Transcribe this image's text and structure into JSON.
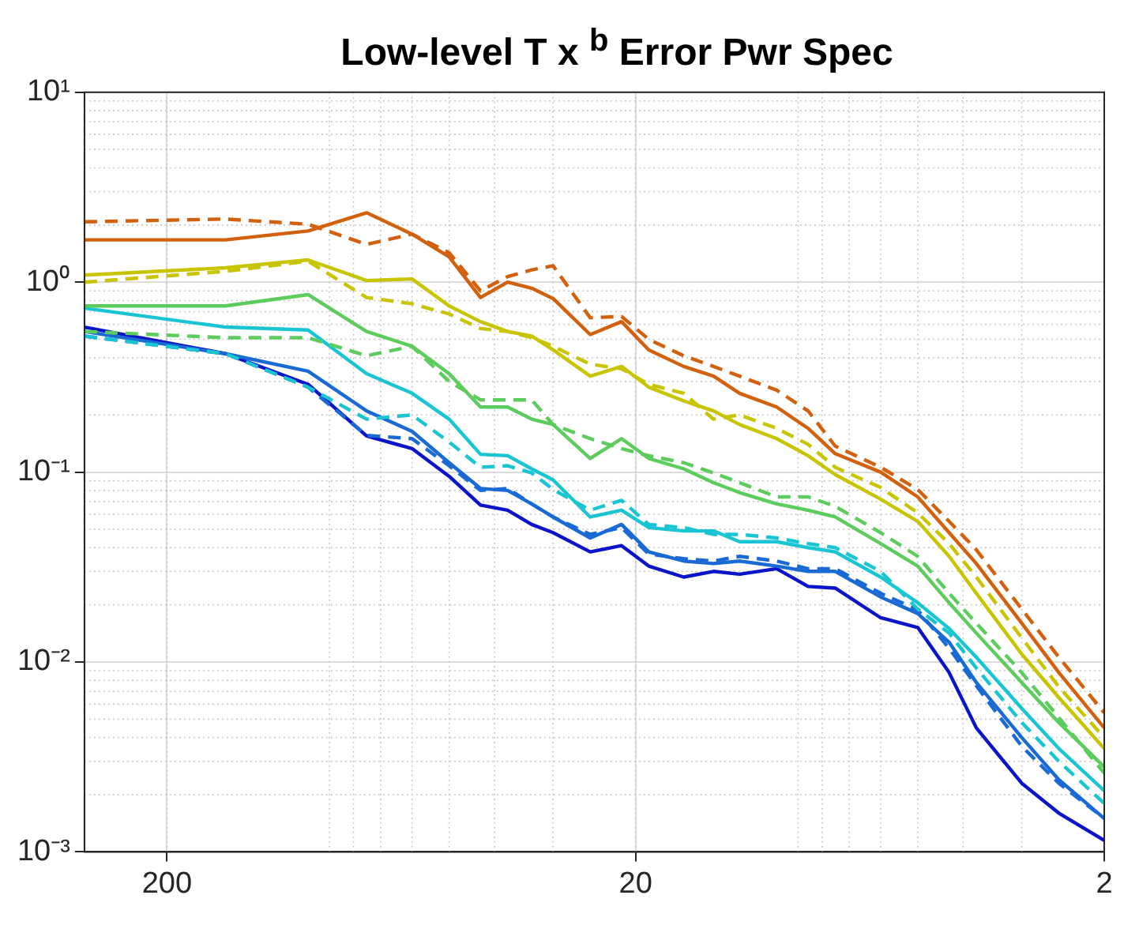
{
  "chart_data": {
    "type": "line",
    "title": "Low-level T x $^{b}$ Error Pwr Spec",
    "x": [
      300,
      150,
      100,
      75,
      60,
      50,
      42.86,
      37.5,
      33.33,
      30,
      25,
      21.43,
      18.75,
      15.79,
      13.64,
      12,
      10,
      8.571,
      7.5,
      6,
      5,
      4.286,
      3.75,
      3,
      2.5,
      2
    ],
    "xlim": [
      300,
      2
    ],
    "xticks": [
      200,
      20,
      2
    ],
    "ylim": [
      0.001,
      10
    ],
    "yticks": [
      {
        "value": 0.001,
        "label": "10⁻³"
      },
      {
        "value": 0.01,
        "label": "10⁻²"
      },
      {
        "value": 0.1,
        "label": "10⁻¹"
      },
      {
        "value": 1,
        "label": "10⁰"
      },
      {
        "value": 10,
        "label": "10¹"
      }
    ],
    "log": "xy",
    "grid": true,
    "legend": false,
    "marker": "none",
    "line_style": "solid",
    "series": [
      {
        "color": "#d3600d",
        "values": [
          1.67,
          1.67,
          1.86,
          2.32,
          1.79,
          1.36,
          0.83,
          1.0,
          0.93,
          0.82,
          0.53,
          0.62,
          0.44,
          0.36,
          0.32,
          0.26,
          0.22,
          0.17,
          0.125,
          0.1,
          0.074,
          0.048,
          0.033,
          0.016,
          0.0088,
          0.0045
        ]
      },
      {
        "color": "#d3600d",
        "line_style": "dashed",
        "values": [
          2.08,
          2.15,
          2.02,
          1.58,
          1.79,
          1.43,
          0.9,
          1.07,
          1.16,
          1.22,
          0.65,
          0.66,
          0.5,
          0.41,
          0.36,
          0.32,
          0.27,
          0.21,
          0.137,
          0.106,
          0.081,
          0.055,
          0.039,
          0.019,
          0.0106,
          0.0054
        ]
      },
      {
        "color": "#c8c400",
        "values": [
          1.09,
          1.19,
          1.31,
          1.02,
          1.04,
          0.75,
          0.62,
          0.55,
          0.52,
          0.44,
          0.32,
          0.36,
          0.28,
          0.237,
          0.21,
          0.178,
          0.15,
          0.122,
          0.097,
          0.072,
          0.055,
          0.036,
          0.023,
          0.011,
          0.0065,
          0.0035
        ]
      },
      {
        "color": "#c8c400",
        "line_style": "dashed",
        "values": [
          1.0,
          1.14,
          1.29,
          0.83,
          0.77,
          0.68,
          0.57,
          0.55,
          0.51,
          0.46,
          0.37,
          0.35,
          0.29,
          0.26,
          0.19,
          0.2,
          0.17,
          0.14,
          0.106,
          0.083,
          0.061,
          0.042,
          0.028,
          0.0134,
          0.0074,
          0.004
        ]
      },
      {
        "color": "#5ccc5c",
        "values": [
          0.75,
          0.75,
          0.86,
          0.55,
          0.46,
          0.33,
          0.22,
          0.22,
          0.19,
          0.178,
          0.118,
          0.15,
          0.118,
          0.104,
          0.088,
          0.078,
          0.068,
          0.063,
          0.058,
          0.042,
          0.032,
          0.0205,
          0.0142,
          0.0078,
          0.0048,
          0.0028
        ]
      },
      {
        "color": "#5ccc5c",
        "line_style": "dashed",
        "values": [
          0.55,
          0.51,
          0.51,
          0.41,
          0.46,
          0.3,
          0.24,
          0.24,
          0.24,
          0.178,
          0.15,
          0.133,
          0.122,
          0.112,
          0.099,
          0.088,
          0.074,
          0.074,
          0.066,
          0.048,
          0.036,
          0.023,
          0.016,
          0.0088,
          0.0051,
          0.0026
        ]
      },
      {
        "color": "#19c5d2",
        "values": [
          0.73,
          0.58,
          0.56,
          0.33,
          0.26,
          0.19,
          0.124,
          0.122,
          0.104,
          0.091,
          0.058,
          0.063,
          0.051,
          0.049,
          0.049,
          0.043,
          0.043,
          0.04,
          0.038,
          0.028,
          0.0205,
          0.015,
          0.0106,
          0.0057,
          0.0035,
          0.0021
        ]
      },
      {
        "color": "#19c5d2",
        "line_style": "dashed",
        "values": [
          0.52,
          0.42,
          0.28,
          0.19,
          0.2,
          0.144,
          0.106,
          0.108,
          0.099,
          0.081,
          0.063,
          0.071,
          0.053,
          0.051,
          0.047,
          0.047,
          0.045,
          0.042,
          0.04,
          0.03,
          0.019,
          0.0142,
          0.0093,
          0.0048,
          0.003,
          0.0018
        ]
      },
      {
        "color": "#1a6ad6",
        "values": [
          0.55,
          0.42,
          0.34,
          0.21,
          0.164,
          0.112,
          0.082,
          0.08,
          0.068,
          0.058,
          0.045,
          0.053,
          0.038,
          0.034,
          0.033,
          0.034,
          0.032,
          0.03,
          0.03,
          0.022,
          0.018,
          0.0127,
          0.0078,
          0.004,
          0.0024,
          0.0015
        ]
      },
      {
        "color": "#1a6ad6",
        "line_style": "dashed",
        "values": [
          0.52,
          0.42,
          0.28,
          0.156,
          0.15,
          0.108,
          0.08,
          0.082,
          0.068,
          0.058,
          0.047,
          0.051,
          0.037,
          0.035,
          0.034,
          0.036,
          0.034,
          0.031,
          0.031,
          0.023,
          0.0188,
          0.0118,
          0.0075,
          0.0036,
          0.0023,
          0.0015
        ]
      },
      {
        "color": "#0a14c8",
        "values": [
          0.58,
          0.42,
          0.29,
          0.155,
          0.133,
          0.095,
          0.067,
          0.063,
          0.053,
          0.048,
          0.038,
          0.041,
          0.032,
          0.028,
          0.03,
          0.029,
          0.031,
          0.025,
          0.0245,
          0.0171,
          0.0152,
          0.0088,
          0.0045,
          0.0023,
          0.0016,
          0.00115
        ]
      }
    ]
  }
}
